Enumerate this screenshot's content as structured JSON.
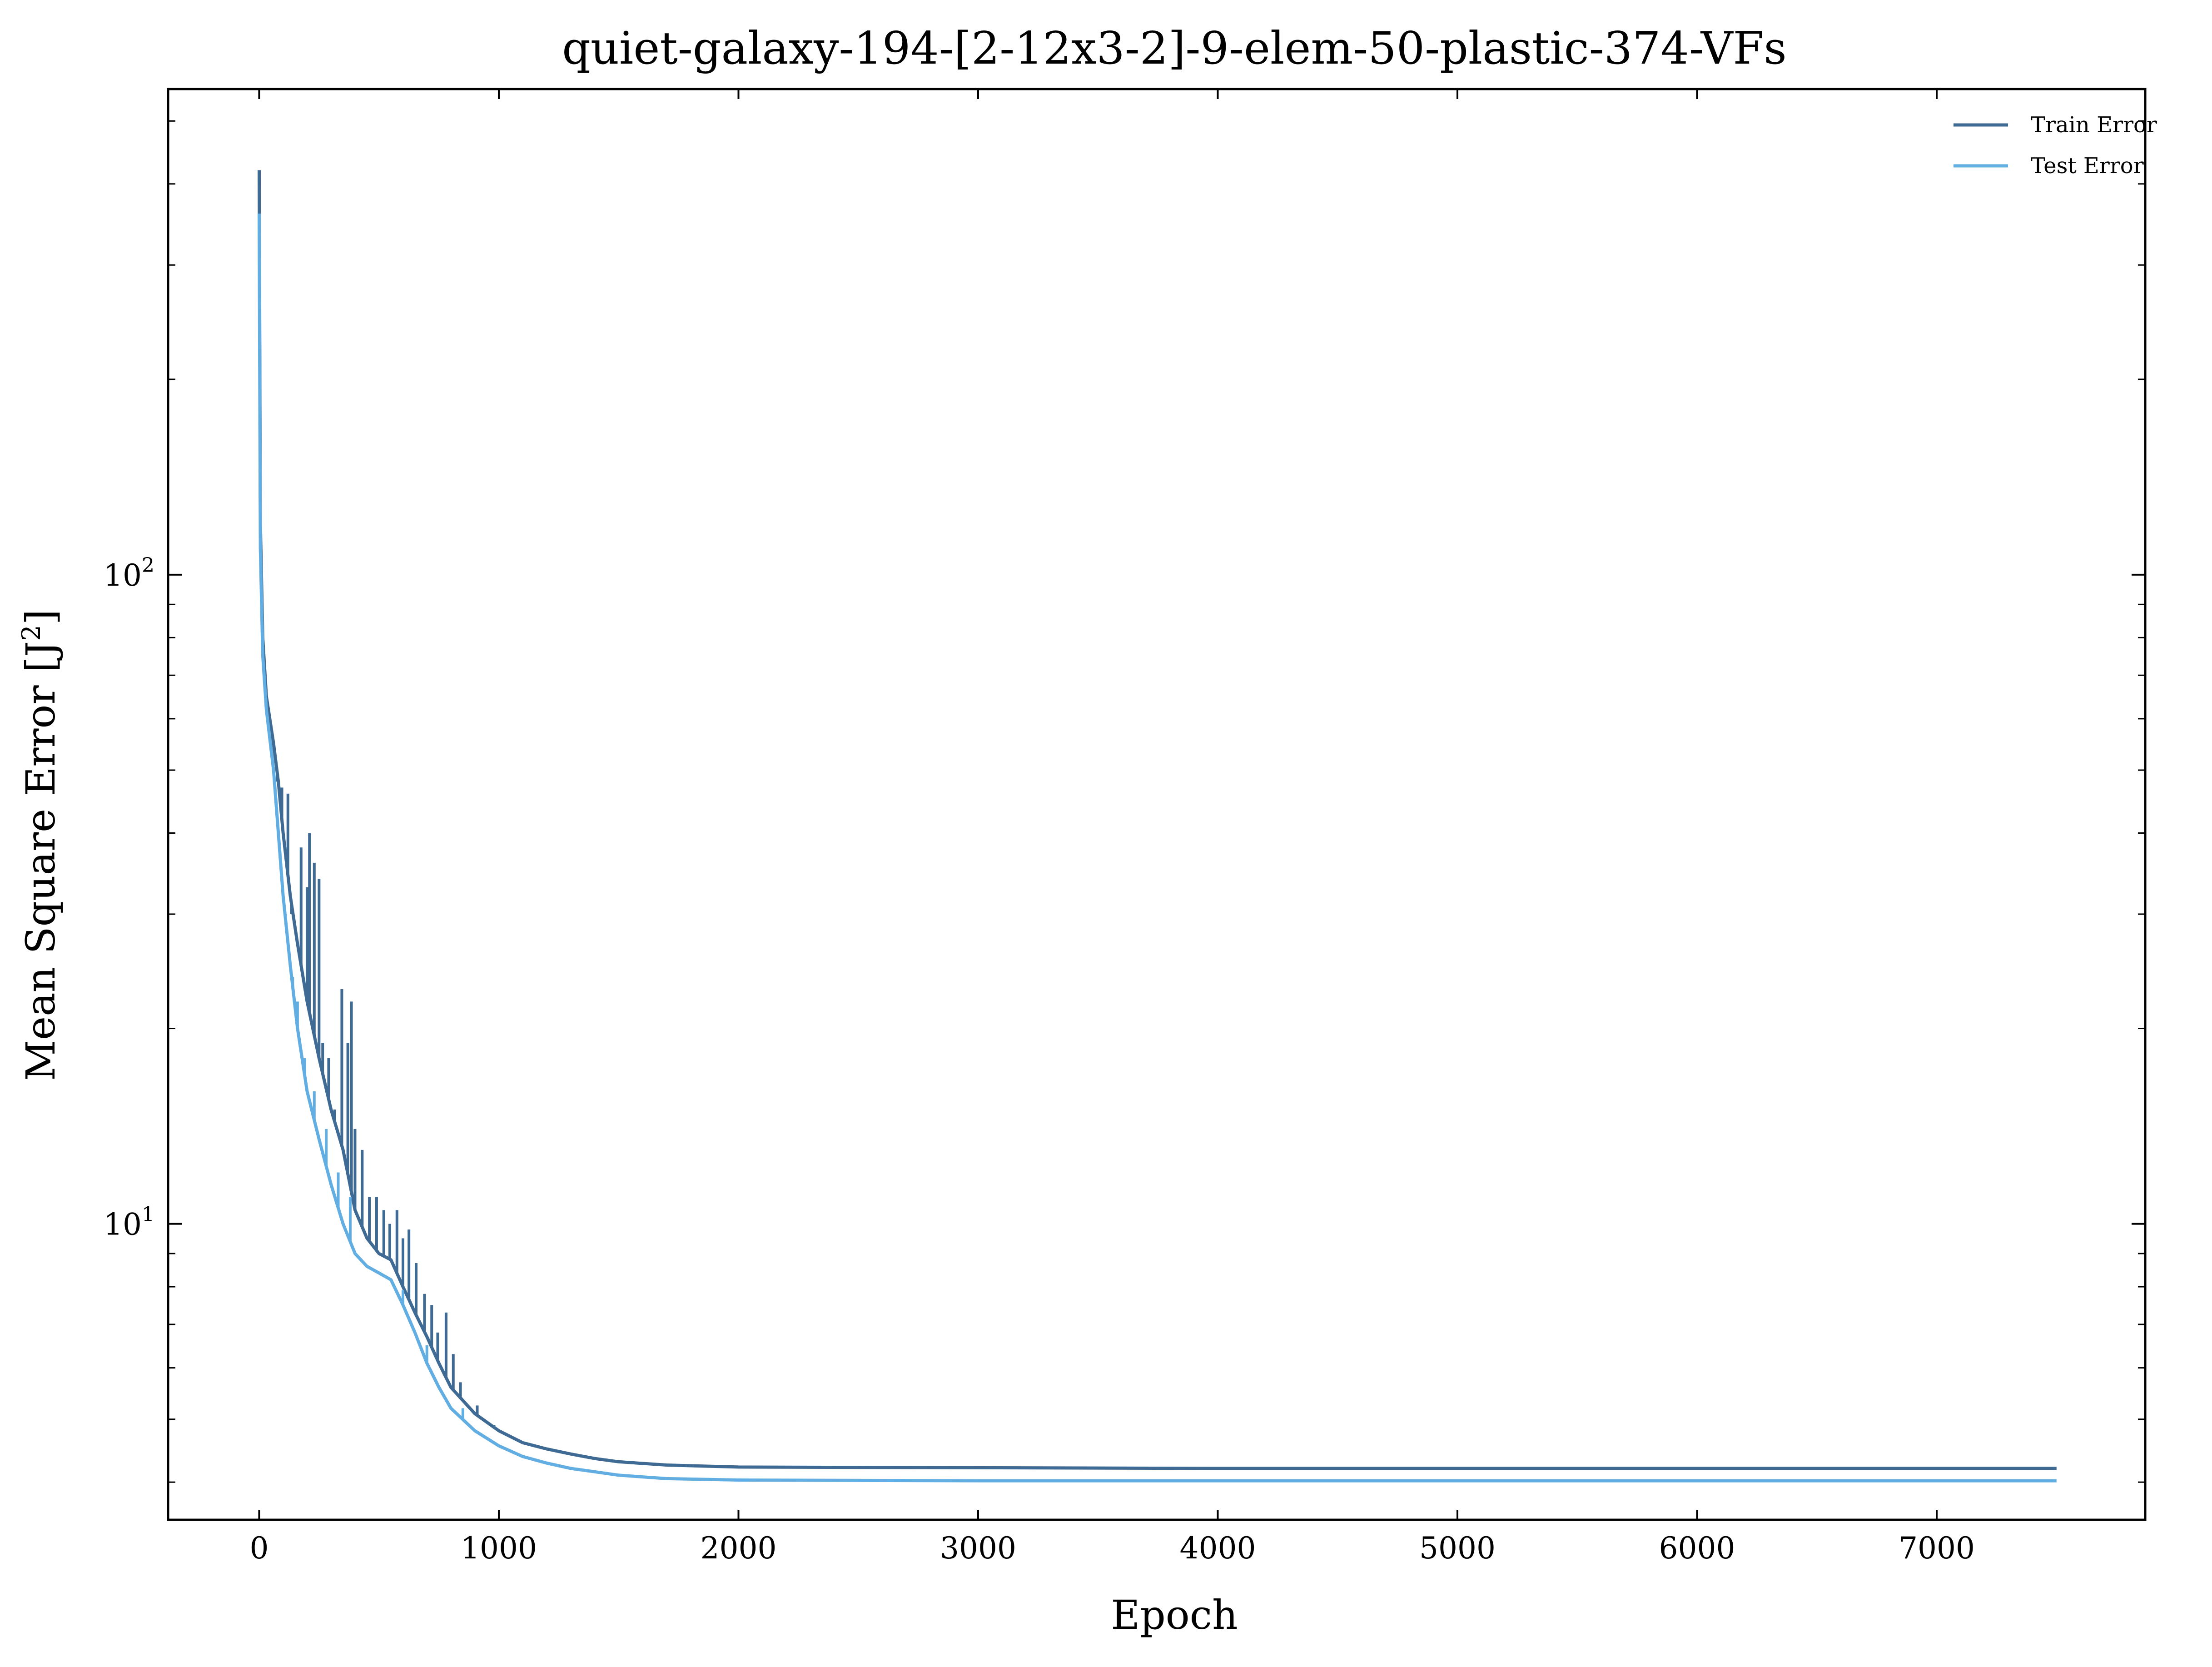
{
  "chart_data": {
    "type": "line",
    "title": "quiet-galaxy-194-[2-12x3-2]-9-elem-50-plastic-374-VFs",
    "xlabel": "Epoch",
    "ylabel": "Mean Square Error [J",
    "ylabel_sup": "2",
    "ylabel_suffix": "]",
    "xlim": [
      -380,
      7870
    ],
    "ylim": [
      3.5,
      560
    ],
    "yscale": "log",
    "grid": false,
    "legend": {
      "placement": "top-right"
    },
    "x_ticks": [
      0,
      1000,
      2000,
      3000,
      4000,
      5000,
      6000,
      7000
    ],
    "x_tick_labels": [
      "0",
      "1000",
      "2000",
      "3000",
      "4000",
      "5000",
      "6000",
      "7000"
    ],
    "y_major_ticks": [
      10,
      100
    ],
    "y_tick_labels": [
      {
        "value": 10,
        "base": "10",
        "exp": "1"
      },
      {
        "value": 100,
        "base": "10",
        "exp": "2"
      }
    ],
    "series": [
      {
        "name": "Train Error",
        "color": "#3e6a94",
        "points": [
          [
            0,
            420
          ],
          [
            5,
            120
          ],
          [
            15,
            80
          ],
          [
            30,
            65
          ],
          [
            60,
            55
          ],
          [
            80,
            48
          ],
          [
            100,
            40
          ],
          [
            130,
            32
          ],
          [
            160,
            27
          ],
          [
            200,
            22
          ],
          [
            250,
            18
          ],
          [
            300,
            15
          ],
          [
            350,
            13
          ],
          [
            400,
            10.5
          ],
          [
            450,
            9.5
          ],
          [
            500,
            9
          ],
          [
            550,
            8.8
          ],
          [
            600,
            8
          ],
          [
            650,
            7.3
          ],
          [
            700,
            6.7
          ],
          [
            750,
            6.1
          ],
          [
            800,
            5.6
          ],
          [
            900,
            5.1
          ],
          [
            1000,
            4.8
          ],
          [
            1100,
            4.6
          ],
          [
            1200,
            4.5
          ],
          [
            1300,
            4.42
          ],
          [
            1400,
            4.35
          ],
          [
            1500,
            4.3
          ],
          [
            1700,
            4.25
          ],
          [
            2000,
            4.22
          ],
          [
            3000,
            4.21
          ],
          [
            4000,
            4.2
          ],
          [
            5000,
            4.2
          ],
          [
            6000,
            4.2
          ],
          [
            7000,
            4.2
          ],
          [
            7500,
            4.2
          ]
        ],
        "spikes": [
          [
            75,
            48
          ],
          [
            95,
            47
          ],
          [
            120,
            46
          ],
          [
            135,
            30
          ],
          [
            155,
            28
          ],
          [
            175,
            38
          ],
          [
            200,
            33
          ],
          [
            210,
            40
          ],
          [
            230,
            36
          ],
          [
            250,
            34
          ],
          [
            265,
            19
          ],
          [
            290,
            18
          ],
          [
            315,
            15
          ],
          [
            345,
            23
          ],
          [
            370,
            19
          ],
          [
            385,
            22
          ],
          [
            400,
            14
          ],
          [
            430,
            13
          ],
          [
            460,
            11
          ],
          [
            490,
            11
          ],
          [
            520,
            10.5
          ],
          [
            545,
            10
          ],
          [
            575,
            10.5
          ],
          [
            600,
            9.5
          ],
          [
            625,
            9.8
          ],
          [
            655,
            8.7
          ],
          [
            690,
            7.8
          ],
          [
            720,
            7.5
          ],
          [
            745,
            6.8
          ],
          [
            780,
            7.3
          ],
          [
            810,
            6.3
          ],
          [
            840,
            5.7
          ],
          [
            880,
            5.2
          ],
          [
            910,
            5.25
          ],
          [
            940,
            5.0
          ],
          [
            980,
            4.9
          ]
        ]
      },
      {
        "name": "Test Error",
        "color": "#62aee2",
        "points": [
          [
            0,
            360
          ],
          [
            5,
            110
          ],
          [
            15,
            75
          ],
          [
            30,
            62
          ],
          [
            60,
            50
          ],
          [
            80,
            40
          ],
          [
            100,
            32
          ],
          [
            130,
            25
          ],
          [
            160,
            20
          ],
          [
            200,
            16
          ],
          [
            250,
            13.5
          ],
          [
            300,
            11.5
          ],
          [
            350,
            10
          ],
          [
            400,
            9
          ],
          [
            450,
            8.6
          ],
          [
            500,
            8.4
          ],
          [
            550,
            8.2
          ],
          [
            600,
            7.5
          ],
          [
            650,
            6.8
          ],
          [
            700,
            6.1
          ],
          [
            750,
            5.6
          ],
          [
            800,
            5.2
          ],
          [
            900,
            4.8
          ],
          [
            1000,
            4.55
          ],
          [
            1100,
            4.38
          ],
          [
            1200,
            4.28
          ],
          [
            1300,
            4.2
          ],
          [
            1400,
            4.15
          ],
          [
            1500,
            4.1
          ],
          [
            1700,
            4.05
          ],
          [
            2000,
            4.03
          ],
          [
            3000,
            4.02
          ],
          [
            4000,
            4.02
          ],
          [
            5000,
            4.02
          ],
          [
            6000,
            4.02
          ],
          [
            7000,
            4.02
          ],
          [
            7500,
            4.02
          ]
        ],
        "spikes": [
          [
            90,
            36
          ],
          [
            110,
            30
          ],
          [
            140,
            24
          ],
          [
            160,
            22
          ],
          [
            190,
            18
          ],
          [
            230,
            16
          ],
          [
            280,
            14
          ],
          [
            330,
            12
          ],
          [
            380,
            11
          ],
          [
            600,
            7.9
          ],
          [
            700,
            6.5
          ],
          [
            850,
            5.2
          ]
        ]
      }
    ]
  }
}
